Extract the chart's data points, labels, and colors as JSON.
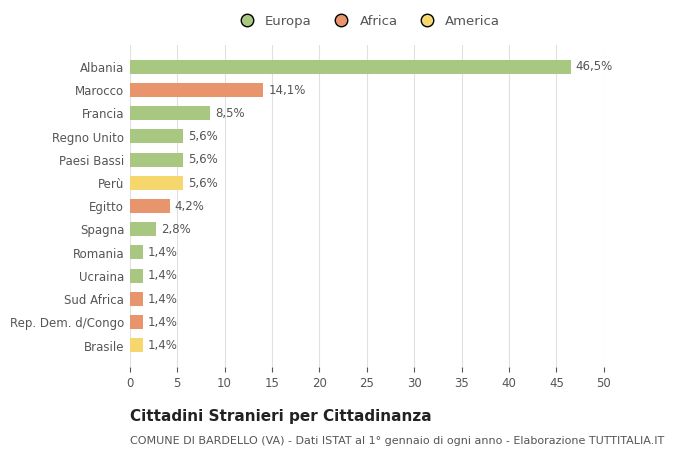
{
  "categories": [
    "Brasile",
    "Rep. Dem. d/Congo",
    "Sud Africa",
    "Ucraina",
    "Romania",
    "Spagna",
    "Egitto",
    "Perù",
    "Paesi Bassi",
    "Regno Unito",
    "Francia",
    "Marocco",
    "Albania"
  ],
  "values": [
    1.4,
    1.4,
    1.4,
    1.4,
    1.4,
    2.8,
    4.2,
    5.6,
    5.6,
    5.6,
    8.5,
    14.1,
    46.5
  ],
  "labels": [
    "1,4%",
    "1,4%",
    "1,4%",
    "1,4%",
    "1,4%",
    "2,8%",
    "4,2%",
    "5,6%",
    "5,6%",
    "5,6%",
    "8,5%",
    "14,1%",
    "46,5%"
  ],
  "colors": [
    "#f5d76e",
    "#e8956d",
    "#e8956d",
    "#a8c882",
    "#a8c882",
    "#a8c882",
    "#e8956d",
    "#f5d76e",
    "#a8c882",
    "#a8c882",
    "#a8c882",
    "#e8956d",
    "#a8c882"
  ],
  "legend": [
    {
      "label": "Europa",
      "color": "#a8c882"
    },
    {
      "label": "Africa",
      "color": "#e8956d"
    },
    {
      "label": "America",
      "color": "#f5d76e"
    }
  ],
  "title": "Cittadini Stranieri per Cittadinanza",
  "subtitle": "COMUNE DI BARDELLO (VA) - Dati ISTAT al 1° gennaio di ogni anno - Elaborazione TUTTITALIA.IT",
  "xlim": [
    0,
    50
  ],
  "xticks": [
    0,
    5,
    10,
    15,
    20,
    25,
    30,
    35,
    40,
    45,
    50
  ],
  "background_color": "#ffffff",
  "grid_color": "#e0e0e0",
  "bar_height": 0.6,
  "title_fontsize": 11,
  "subtitle_fontsize": 8,
  "label_fontsize": 8.5,
  "tick_fontsize": 8.5,
  "legend_fontsize": 9.5,
  "text_color": "#555555",
  "title_color": "#222222"
}
